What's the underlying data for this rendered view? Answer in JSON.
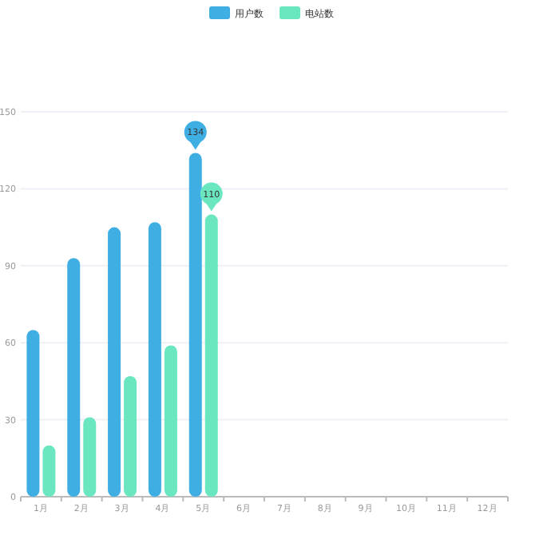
{
  "chart_data": {
    "type": "bar",
    "categories": [
      "1月",
      "2月",
      "3月",
      "4月",
      "5月",
      "6月",
      "7月",
      "8月",
      "9月",
      "10月",
      "11月",
      "12月"
    ],
    "series": [
      {
        "name": "用户数",
        "color": "#3eaee3",
        "values": [
          65,
          93,
          105,
          107,
          134,
          null,
          null,
          null,
          null,
          null,
          null,
          null
        ],
        "value_labels": [
          null,
          null,
          null,
          null,
          "134",
          null,
          null,
          null,
          null,
          null,
          null,
          null
        ]
      },
      {
        "name": "电站数",
        "color": "#6ae6c1",
        "values": [
          20,
          31,
          47,
          59,
          110,
          null,
          null,
          null,
          null,
          null,
          null,
          null
        ],
        "value_labels": [
          null,
          null,
          null,
          null,
          "110",
          null,
          null,
          null,
          null,
          null,
          null,
          null
        ]
      }
    ],
    "ylim": [
      0,
      150
    ],
    "yticks": [
      0,
      30,
      60,
      90,
      120,
      150
    ],
    "grid": "y",
    "legend": "top"
  }
}
